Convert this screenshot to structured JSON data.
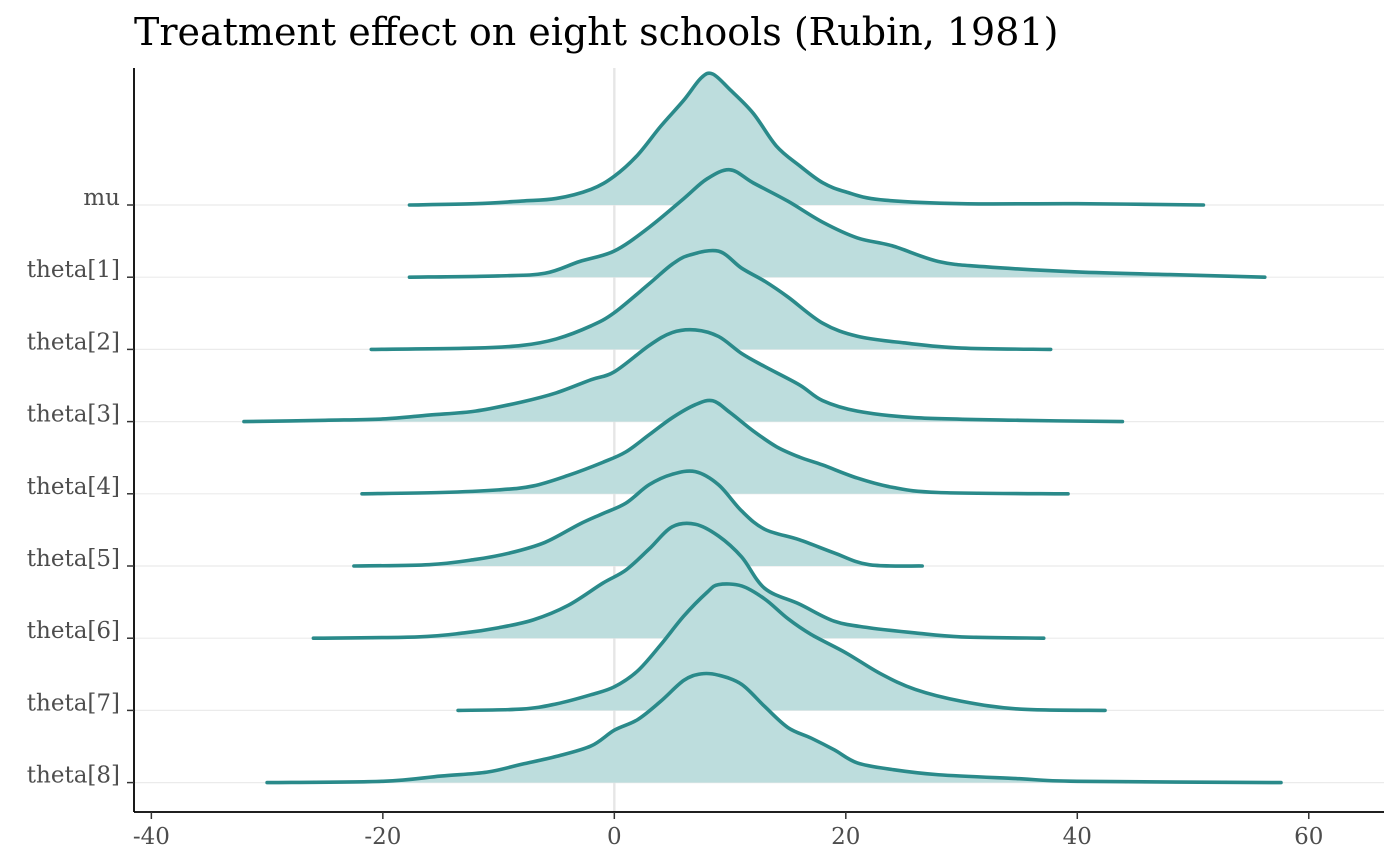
{
  "chart_data": {
    "type": "ridgeline",
    "title": "Treatment effect on eight schools (Rubin, 1981)",
    "xlabel": "",
    "ylabel": "",
    "xlim": [
      -41.5,
      66.5
    ],
    "x_ticks": [
      -40,
      -20,
      0,
      20,
      40,
      60
    ],
    "x_tick_labels": [
      "-40",
      "-20",
      "0",
      "20",
      "40",
      "60"
    ],
    "reference_line_x": 0,
    "grid": "horizontal baselines only",
    "colors": {
      "line": "#2a8a8a",
      "fill": "#bddddd",
      "ref_line": "#e6e6e6",
      "axis": "#000000",
      "grid": "#ebebeb"
    },
    "series": [
      {
        "name": "mu",
        "range": [
          -17.7,
          50.9
        ],
        "density": [
          [
            -17.7,
            0
          ],
          [
            -12,
            0.01
          ],
          [
            -8,
            0.03
          ],
          [
            -5,
            0.05
          ],
          [
            -2,
            0.12
          ],
          [
            0,
            0.22
          ],
          [
            2,
            0.38
          ],
          [
            4,
            0.6
          ],
          [
            6,
            0.8
          ],
          [
            7.5,
            0.97
          ],
          [
            8.5,
            1
          ],
          [
            10,
            0.88
          ],
          [
            12,
            0.7
          ],
          [
            14,
            0.45
          ],
          [
            16,
            0.3
          ],
          [
            18,
            0.17
          ],
          [
            20,
            0.1
          ],
          [
            23,
            0.04
          ],
          [
            30,
            0.01
          ],
          [
            40,
            0.01
          ],
          [
            50.9,
            0
          ]
        ]
      },
      {
        "name": "theta[1]",
        "range": [
          -17.7,
          56.2
        ],
        "density": [
          [
            -17.7,
            0
          ],
          [
            -10,
            0.01
          ],
          [
            -6,
            0.03
          ],
          [
            -3,
            0.12
          ],
          [
            0,
            0.2
          ],
          [
            3,
            0.38
          ],
          [
            6,
            0.6
          ],
          [
            8,
            0.75
          ],
          [
            10,
            0.82
          ],
          [
            12,
            0.72
          ],
          [
            15,
            0.58
          ],
          [
            18,
            0.42
          ],
          [
            21,
            0.3
          ],
          [
            24,
            0.24
          ],
          [
            28,
            0.12
          ],
          [
            32,
            0.08
          ],
          [
            40,
            0.04
          ],
          [
            48,
            0.02
          ],
          [
            56.2,
            0
          ]
        ]
      },
      {
        "name": "theta[2]",
        "range": [
          -21,
          37.7
        ],
        "density": [
          [
            -21,
            0
          ],
          [
            -12,
            0.01
          ],
          [
            -8,
            0.03
          ],
          [
            -5,
            0.08
          ],
          [
            -2,
            0.18
          ],
          [
            0,
            0.28
          ],
          [
            3,
            0.5
          ],
          [
            5,
            0.65
          ],
          [
            6.5,
            0.72
          ],
          [
            9,
            0.75
          ],
          [
            11,
            0.62
          ],
          [
            13,
            0.52
          ],
          [
            15,
            0.4
          ],
          [
            18,
            0.2
          ],
          [
            21,
            0.1
          ],
          [
            25,
            0.05
          ],
          [
            30,
            0.01
          ],
          [
            37.7,
            0
          ]
        ]
      },
      {
        "name": "theta[3]",
        "range": [
          -32,
          43.9
        ],
        "density": [
          [
            -32,
            0
          ],
          [
            -25,
            0.01
          ],
          [
            -20,
            0.02
          ],
          [
            -16,
            0.05
          ],
          [
            -12,
            0.08
          ],
          [
            -8,
            0.15
          ],
          [
            -5,
            0.22
          ],
          [
            -2,
            0.32
          ],
          [
            0,
            0.38
          ],
          [
            3,
            0.58
          ],
          [
            5,
            0.68
          ],
          [
            7,
            0.7
          ],
          [
            9,
            0.65
          ],
          [
            11,
            0.52
          ],
          [
            13,
            0.42
          ],
          [
            16,
            0.28
          ],
          [
            18,
            0.16
          ],
          [
            21,
            0.08
          ],
          [
            26,
            0.03
          ],
          [
            35,
            0.01
          ],
          [
            43.9,
            0
          ]
        ]
      },
      {
        "name": "theta[4]",
        "range": [
          -21.8,
          39.2
        ],
        "density": [
          [
            -21.8,
            0
          ],
          [
            -15,
            0.01
          ],
          [
            -10,
            0.03
          ],
          [
            -7,
            0.06
          ],
          [
            -4,
            0.14
          ],
          [
            -1,
            0.24
          ],
          [
            1,
            0.32
          ],
          [
            3,
            0.45
          ],
          [
            5,
            0.58
          ],
          [
            7,
            0.68
          ],
          [
            8.5,
            0.71
          ],
          [
            10,
            0.62
          ],
          [
            12,
            0.48
          ],
          [
            14,
            0.36
          ],
          [
            16,
            0.28
          ],
          [
            18,
            0.22
          ],
          [
            21,
            0.12
          ],
          [
            24,
            0.05
          ],
          [
            28,
            0.01
          ],
          [
            39.2,
            0
          ]
        ]
      },
      {
        "name": "theta[5]",
        "range": [
          -22.5,
          26.6
        ],
        "density": [
          [
            -22.5,
            0
          ],
          [
            -16,
            0.01
          ],
          [
            -12,
            0.05
          ],
          [
            -9,
            0.1
          ],
          [
            -6,
            0.18
          ],
          [
            -3,
            0.32
          ],
          [
            -1,
            0.4
          ],
          [
            1,
            0.48
          ],
          [
            3,
            0.62
          ],
          [
            5,
            0.7
          ],
          [
            7,
            0.72
          ],
          [
            9,
            0.62
          ],
          [
            11,
            0.42
          ],
          [
            13,
            0.28
          ],
          [
            16,
            0.2
          ],
          [
            19,
            0.1
          ],
          [
            22,
            0.01
          ],
          [
            26.6,
            0
          ]
        ]
      },
      {
        "name": "theta[6]",
        "range": [
          -26,
          37.1
        ],
        "density": [
          [
            -26,
            0
          ],
          [
            -17,
            0.01
          ],
          [
            -13,
            0.04
          ],
          [
            -10,
            0.08
          ],
          [
            -7,
            0.14
          ],
          [
            -4,
            0.25
          ],
          [
            -1,
            0.42
          ],
          [
            1,
            0.52
          ],
          [
            3,
            0.68
          ],
          [
            5,
            0.85
          ],
          [
            7,
            0.87
          ],
          [
            9,
            0.78
          ],
          [
            11,
            0.62
          ],
          [
            13,
            0.38
          ],
          [
            16,
            0.26
          ],
          [
            19,
            0.13
          ],
          [
            22,
            0.08
          ],
          [
            26,
            0.04
          ],
          [
            30,
            0.01
          ],
          [
            37.1,
            0
          ]
        ]
      },
      {
        "name": "theta[7]",
        "range": [
          -13.5,
          42.4
        ],
        "density": [
          [
            -13.5,
            0
          ],
          [
            -8,
            0.01
          ],
          [
            -5,
            0.05
          ],
          [
            -2,
            0.12
          ],
          [
            0,
            0.18
          ],
          [
            2,
            0.3
          ],
          [
            4,
            0.5
          ],
          [
            6,
            0.72
          ],
          [
            8,
            0.9
          ],
          [
            9,
            0.96
          ],
          [
            11,
            0.95
          ],
          [
            13,
            0.85
          ],
          [
            15,
            0.7
          ],
          [
            17,
            0.58
          ],
          [
            20,
            0.44
          ],
          [
            23,
            0.28
          ],
          [
            26,
            0.16
          ],
          [
            30,
            0.07
          ],
          [
            35,
            0.01
          ],
          [
            42.4,
            0
          ]
        ]
      },
      {
        "name": "theta[8]",
        "range": [
          -30,
          57.6
        ],
        "density": [
          [
            -30,
            0
          ],
          [
            -20,
            0.01
          ],
          [
            -15,
            0.05
          ],
          [
            -11,
            0.08
          ],
          [
            -8,
            0.14
          ],
          [
            -5,
            0.2
          ],
          [
            -2,
            0.28
          ],
          [
            0,
            0.4
          ],
          [
            2,
            0.48
          ],
          [
            4,
            0.62
          ],
          [
            6,
            0.78
          ],
          [
            7.5,
            0.83
          ],
          [
            9,
            0.82
          ],
          [
            11,
            0.75
          ],
          [
            13,
            0.58
          ],
          [
            15,
            0.42
          ],
          [
            17,
            0.34
          ],
          [
            19,
            0.25
          ],
          [
            21,
            0.15
          ],
          [
            24,
            0.1
          ],
          [
            28,
            0.06
          ],
          [
            35,
            0.03
          ],
          [
            40,
            0.01
          ],
          [
            57.6,
            0
          ]
        ]
      }
    ]
  }
}
